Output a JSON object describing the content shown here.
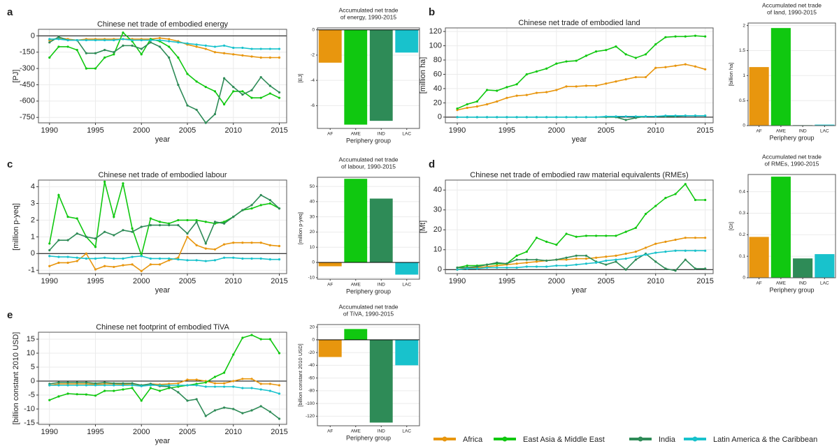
{
  "chart_data": [
    {
      "type": "line",
      "label": "a",
      "title": "Chinese net trade of embodied energy",
      "xlabel": "year",
      "ylabel": "[PJ]",
      "x": [
        1990,
        1991,
        1992,
        1993,
        1994,
        1995,
        1996,
        1997,
        1998,
        1999,
        2000,
        2001,
        2002,
        2003,
        2004,
        2005,
        2006,
        2007,
        2008,
        2009,
        2010,
        2011,
        2012,
        2013,
        2014,
        2015
      ],
      "xlim": [
        1988.8,
        2015.8
      ],
      "xticks": [
        1990,
        1995,
        2000,
        2005,
        2010,
        2015
      ],
      "ylim": [
        -800,
        60
      ],
      "yticks": [
        0,
        -150,
        -300,
        -450,
        -600,
        -750
      ],
      "grid": true,
      "series": [
        {
          "color": "#e8960e",
          "values": [
            -40,
            -20,
            -30,
            -40,
            -30,
            -30,
            -30,
            -30,
            -30,
            -30,
            -30,
            -30,
            -20,
            -30,
            -50,
            -80,
            -100,
            -120,
            -150,
            -160,
            -170,
            -180,
            -190,
            -200,
            -200,
            -200
          ]
        },
        {
          "color": "#10c810",
          "values": [
            -200,
            -100,
            -100,
            -130,
            -300,
            -300,
            -200,
            -170,
            30,
            -50,
            -170,
            -30,
            -50,
            -100,
            -200,
            -350,
            -420,
            -470,
            -510,
            -630,
            -510,
            -510,
            -570,
            -570,
            -530,
            -570
          ]
        },
        {
          "color": "#2e8b57",
          "values": [
            -60,
            -10,
            -40,
            -40,
            -160,
            -160,
            -130,
            -150,
            -90,
            -90,
            -120,
            -60,
            -100,
            -200,
            -450,
            -640,
            -680,
            -800,
            -720,
            -390,
            -470,
            -540,
            -500,
            -380,
            -460,
            -520
          ]
        },
        {
          "color": "#18c2cc",
          "values": [
            -30,
            -30,
            -40,
            -40,
            -40,
            -40,
            -40,
            -40,
            -30,
            -40,
            -40,
            -40,
            -40,
            -50,
            -60,
            -70,
            -80,
            -90,
            -100,
            -90,
            -110,
            -110,
            -120,
            -120,
            -120,
            -120
          ]
        }
      ]
    },
    {
      "type": "bar",
      "title": [
        "Accumulated net trade",
        "of energy, 1990-2015"
      ],
      "xlabel": "Periphery group",
      "ylabel": "[EJ]",
      "categories": [
        "AF",
        "AME",
        "IND",
        "LAC"
      ],
      "values": [
        -2.6,
        -7.5,
        -7.2,
        -1.8
      ],
      "colors": [
        "#e8960e",
        "#10c810",
        "#2e8b57",
        "#18c2cc"
      ],
      "ylim": [
        -7.8,
        0.15
      ],
      "yticks": [
        0,
        -2,
        -4,
        -6
      ],
      "grid": true
    },
    {
      "type": "line",
      "label": "b",
      "title": "Chinese net trade of embodied land",
      "xlabel": "year",
      "ylabel": "[million ha]",
      "x": [
        1990,
        1991,
        1992,
        1993,
        1994,
        1995,
        1996,
        1997,
        1998,
        1999,
        2000,
        2001,
        2002,
        2003,
        2004,
        2005,
        2006,
        2007,
        2008,
        2009,
        2010,
        2011,
        2012,
        2013,
        2014,
        2015
      ],
      "xlim": [
        1988.8,
        2015.8
      ],
      "xticks": [
        1990,
        1995,
        2000,
        2005,
        2010,
        2015
      ],
      "ylim": [
        -8,
        125
      ],
      "yticks": [
        0,
        20,
        40,
        60,
        80,
        100,
        120
      ],
      "grid": true,
      "series": [
        {
          "color": "#e8960e",
          "values": [
            10,
            13,
            15,
            18,
            22,
            27,
            30,
            31,
            34,
            35,
            38,
            43,
            43,
            44,
            44,
            47,
            50,
            53,
            56,
            56,
            69,
            70,
            72,
            74,
            71,
            67
          ]
        },
        {
          "color": "#10c810",
          "values": [
            12,
            18,
            22,
            38,
            37,
            42,
            46,
            60,
            64,
            68,
            75,
            78,
            79,
            86,
            92,
            94,
            99,
            88,
            83,
            88,
            102,
            112,
            113,
            113,
            114,
            113
          ]
        },
        {
          "color": "#2e8b57",
          "values": [
            0,
            0,
            0,
            0,
            0,
            0,
            0,
            0,
            0,
            0,
            0,
            0,
            0,
            0,
            0,
            0,
            0,
            -4,
            -1,
            1,
            1,
            1,
            1,
            2,
            2,
            2
          ]
        },
        {
          "color": "#18c2cc",
          "values": [
            0,
            0,
            0,
            0,
            0,
            0,
            0,
            0,
            0,
            0,
            0,
            0,
            0,
            0,
            0,
            1,
            1,
            1,
            1,
            1,
            1,
            2,
            2,
            2,
            2,
            2
          ]
        }
      ]
    },
    {
      "type": "bar",
      "title": [
        "Accumulated net trade",
        "of land, 1990-2015"
      ],
      "xlabel": "Periphery group",
      "ylabel": "[billion ha]",
      "categories": [
        "AF",
        "AME",
        "IND",
        "LAC"
      ],
      "values": [
        1.17,
        1.95,
        0.01,
        0.02
      ],
      "colors": [
        "#e8960e",
        "#10c810",
        "#2e8b57",
        "#18c2cc"
      ],
      "ylim": [
        0,
        2.05
      ],
      "yticks": [
        0,
        0.5,
        1,
        1.5,
        2
      ],
      "grid": true
    },
    {
      "type": "line",
      "label": "c",
      "title": "Chinese net trade of embodied labour",
      "xlabel": "year",
      "ylabel": "[million p-yeq]",
      "x": [
        1990,
        1991,
        1992,
        1993,
        1994,
        1995,
        1996,
        1997,
        1998,
        1999,
        2000,
        2001,
        2002,
        2003,
        2004,
        2005,
        2006,
        2007,
        2008,
        2009,
        2010,
        2011,
        2012,
        2013,
        2014,
        2015
      ],
      "xlim": [
        1988.8,
        2015.8
      ],
      "xticks": [
        1990,
        1995,
        2000,
        2005,
        2010,
        2015
      ],
      "ylim": [
        -1.2,
        4.4
      ],
      "yticks": [
        -1,
        0,
        1,
        2,
        3,
        4
      ],
      "grid": true,
      "series": [
        {
          "color": "#e8960e",
          "values": [
            -0.75,
            -0.55,
            -0.55,
            -0.45,
            0,
            -0.95,
            -0.75,
            -0.8,
            -0.7,
            -0.65,
            -1.05,
            -0.65,
            -0.65,
            -0.4,
            -0.25,
            1,
            0.5,
            0.3,
            0.25,
            0.55,
            0.65,
            0.65,
            0.65,
            0.65,
            0.5,
            0.45
          ]
        },
        {
          "color": "#10c810",
          "values": [
            0.6,
            3.5,
            2.2,
            2.1,
            1,
            0.4,
            4.3,
            2.2,
            4.2,
            1.5,
            -0.1,
            2.1,
            1.9,
            1.8,
            2,
            2,
            2,
            1.9,
            1.8,
            1.9,
            2.2,
            2.6,
            2.7,
            2.9,
            3,
            2.7
          ]
        },
        {
          "color": "#2e8b57",
          "values": [
            0.2,
            0.8,
            0.8,
            1.2,
            1,
            0.9,
            1.3,
            1.1,
            1.4,
            1.3,
            1.6,
            1.7,
            1.7,
            1.7,
            1.7,
            1.2,
            1.9,
            0.6,
            1.9,
            1.8,
            2.2,
            2.6,
            2.9,
            3.5,
            3.2,
            2.7
          ]
        },
        {
          "color": "#18c2cc",
          "values": [
            -0.15,
            -0.2,
            -0.2,
            -0.25,
            -0.3,
            -0.3,
            -0.25,
            -0.3,
            -0.3,
            -0.2,
            -0.15,
            -0.3,
            -0.3,
            -0.3,
            -0.35,
            -0.4,
            -0.4,
            -0.45,
            -0.4,
            -0.25,
            -0.25,
            -0.3,
            -0.3,
            -0.3,
            -0.35,
            -0.35
          ]
        }
      ]
    },
    {
      "type": "bar",
      "title": [
        "Accumulated net trade",
        "of labour, 1990-2015"
      ],
      "xlabel": "Periphery group",
      "ylabel": "[million p-yeq]",
      "categories": [
        "AF",
        "AME",
        "IND",
        "LAC"
      ],
      "values": [
        -2.5,
        55,
        42,
        -8
      ],
      "colors": [
        "#e8960e",
        "#10c810",
        "#2e8b57",
        "#18c2cc"
      ],
      "ylim": [
        -11,
        56
      ],
      "yticks": [
        -10,
        0,
        10,
        20,
        30,
        40,
        50
      ],
      "grid": true
    },
    {
      "type": "line",
      "label": "d",
      "title": "Chinese net trade of embodied raw material equivalents (RMEs)",
      "xlabel": "year",
      "ylabel": "[Mt]",
      "x": [
        1990,
        1991,
        1992,
        1993,
        1994,
        1995,
        1996,
        1997,
        1998,
        1999,
        2000,
        2001,
        2002,
        2003,
        2004,
        2005,
        2006,
        2007,
        2008,
        2009,
        2010,
        2011,
        2012,
        2013,
        2014,
        2015
      ],
      "xlim": [
        1988.8,
        2015.8
      ],
      "xticks": [
        1990,
        1995,
        2000,
        2005,
        2010,
        2015
      ],
      "ylim": [
        -2,
        45
      ],
      "yticks": [
        0,
        10,
        20,
        30,
        40
      ],
      "grid": true,
      "series": [
        {
          "color": "#e8960e",
          "values": [
            0,
            1,
            1,
            1.5,
            2,
            2.5,
            3,
            3.5,
            4,
            4.5,
            5,
            5,
            5.5,
            5.5,
            6,
            6.5,
            7,
            8,
            9,
            11,
            13,
            14,
            15,
            16,
            16,
            16
          ]
        },
        {
          "color": "#10c810",
          "values": [
            1,
            2,
            2,
            2.5,
            3,
            3,
            7,
            9,
            16,
            14,
            12.5,
            18,
            16.5,
            17,
            17,
            17,
            17,
            19,
            21,
            28,
            32,
            36,
            38,
            43,
            35,
            35
          ]
        },
        {
          "color": "#2e8b57",
          "values": [
            1,
            1,
            1.5,
            2.5,
            3.5,
            3,
            5,
            5,
            5,
            4.5,
            5,
            6,
            7,
            7,
            4,
            2.5,
            4,
            0,
            5,
            8,
            4,
            0.5,
            -0.5,
            5,
            0.5,
            0.5
          ]
        },
        {
          "color": "#18c2cc",
          "values": [
            0,
            0.5,
            0.5,
            1,
            1,
            1,
            1,
            1.5,
            1.5,
            1.5,
            2,
            2,
            2.5,
            3,
            3.5,
            4.5,
            5,
            5.5,
            6.5,
            7.5,
            8.5,
            9,
            9.5,
            9.5,
            9.5,
            9.5
          ]
        }
      ]
    },
    {
      "type": "bar",
      "title": [
        "Accumulated net trade",
        "of RMEs, 1990-2015"
      ],
      "xlabel": "Periphery group",
      "ylabel": "[Gt]",
      "categories": [
        "AF",
        "AME",
        "IND",
        "LAC"
      ],
      "values": [
        0.19,
        0.47,
        0.09,
        0.11
      ],
      "colors": [
        "#e8960e",
        "#10c810",
        "#2e8b57",
        "#18c2cc"
      ],
      "ylim": [
        0,
        0.48
      ],
      "yticks": [
        0,
        0.1,
        0.2,
        0.3,
        0.4
      ],
      "grid": true
    },
    {
      "type": "line",
      "label": "e",
      "title": "Chinese net footprint of embodied TiVA",
      "xlabel": "year",
      "ylabel": "[billion constant 2010 USD]",
      "x": [
        1990,
        1991,
        1992,
        1993,
        1994,
        1995,
        1996,
        1997,
        1998,
        1999,
        2000,
        2001,
        2002,
        2003,
        2004,
        2005,
        2006,
        2007,
        2008,
        2009,
        2010,
        2011,
        2012,
        2013,
        2014,
        2015
      ],
      "xlim": [
        1988.8,
        2015.8
      ],
      "xticks": [
        1990,
        1995,
        2000,
        2005,
        2010,
        2015
      ],
      "ylim": [
        -15.5,
        17.5
      ],
      "yticks": [
        -15,
        -10,
        -5,
        0,
        5,
        10,
        15
      ],
      "grid": true,
      "series": [
        {
          "color": "#e8960e",
          "values": [
            -1.5,
            -1,
            -1,
            -1,
            -1,
            -1.2,
            -1,
            -1,
            -1.2,
            -1,
            -1.5,
            -1,
            -1.2,
            -1,
            -0.8,
            0.5,
            0.5,
            0,
            -0.8,
            -0.8,
            0,
            0.8,
            0.8,
            -1,
            -1,
            -1.5
          ]
        },
        {
          "color": "#10c810",
          "values": [
            -6.8,
            -5.5,
            -4.5,
            -4.7,
            -4.8,
            -5.2,
            -3.5,
            -3.5,
            -3,
            -2.5,
            -7,
            -2.5,
            -3.5,
            -2.5,
            -2,
            -1.5,
            -1,
            -0.5,
            1.5,
            3,
            9.5,
            15.5,
            16.5,
            15,
            15,
            10
          ]
        },
        {
          "color": "#2e8b57",
          "values": [
            -1,
            -0.5,
            -0.5,
            -0.5,
            -0.5,
            -0.8,
            -0.5,
            -0.8,
            -0.8,
            -0.8,
            -1.5,
            -1,
            -1.8,
            -2,
            -4,
            -7,
            -6.5,
            -12.5,
            -10.5,
            -9.5,
            -10,
            -11.5,
            -10.5,
            -9,
            -11,
            -13.5
          ]
        },
        {
          "color": "#18c2cc",
          "values": [
            -1.5,
            -1.5,
            -1.5,
            -1.5,
            -1.5,
            -1.5,
            -1.5,
            -1.5,
            -1.5,
            -1.5,
            -1.8,
            -1.5,
            -1.5,
            -1.5,
            -1.5,
            -1.5,
            -1.5,
            -2,
            -2,
            -2,
            -2,
            -2.5,
            -2.5,
            -3,
            -3.5,
            -4.5
          ]
        }
      ]
    },
    {
      "type": "bar",
      "title": [
        "Accumulated net trade",
        "of TiVA, 1990-2015"
      ],
      "xlabel": "Periphery group",
      "ylabel": "[billion constant 2010 USD]",
      "categories": [
        "AF",
        "AME",
        "IND",
        "LAC"
      ],
      "values": [
        -27,
        17,
        -130,
        -40
      ],
      "colors": [
        "#e8960e",
        "#10c810",
        "#2e8b57",
        "#18c2cc"
      ],
      "ylim": [
        -135,
        24
      ],
      "yticks": [
        -120,
        -100,
        -80,
        -60,
        -40,
        -20,
        0,
        20
      ],
      "grid": true
    }
  ],
  "legend": [
    {
      "name": "Africa",
      "color": "#e8960e"
    },
    {
      "name": "East Asia & Middle East",
      "color": "#10c810"
    },
    {
      "name": "India",
      "color": "#2e8b57"
    },
    {
      "name": "Latin America & the Caribbean",
      "color": "#18c2cc"
    }
  ]
}
